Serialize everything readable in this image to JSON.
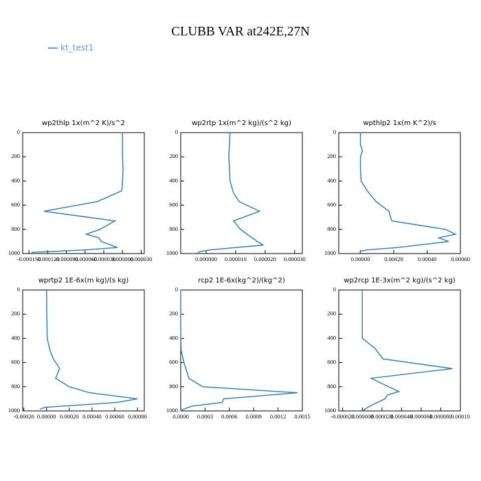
{
  "title": "CLUBB VAR at242E,27N",
  "chart_data": [
    {
      "type": "line",
      "title": "wp2thlp  1x(m^2 K)/s^2",
      "levels": [
        0,
        100,
        150,
        200,
        300,
        400,
        480,
        570,
        650,
        730,
        800,
        840,
        870,
        900,
        950,
        970,
        990,
        1000
      ],
      "series": [
        {
          "name": "kt_test1",
          "color": "#2a78b4",
          "values": [
            0,
            0,
            0,
            0,
            1e-06,
            0,
            -1e-06,
            -4e-05,
            -0.000126,
            -1.2e-05,
            -3.6e-05,
            -5.8e-05,
            -3.8e-05,
            -3.4e-05,
            -8e-06,
            -6e-05,
            -0.000145,
            -0.000145
          ]
        }
      ],
      "xlim": [
        -0.00016,
        3.5e-05
      ],
      "xticks": [
        {
          "value": -0.00015,
          "label": "-0.000150"
        },
        {
          "value": -0.00012,
          "label": "-0.000120"
        },
        {
          "value": -9e-05,
          "label": "-0.000090"
        },
        {
          "value": -6e-05,
          "label": "-0.000060"
        },
        {
          "value": -3e-05,
          "label": "-0.000030"
        },
        {
          "value": 0,
          "label": "0.000000"
        },
        {
          "value": 3e-05,
          "label": "0.000030"
        }
      ],
      "ylim": [
        1000,
        0
      ],
      "yticks": [
        0,
        200,
        400,
        600,
        800,
        1000
      ]
    },
    {
      "type": "line",
      "title": "wp2rtp  1x(m^2 kg)/(s^2 kg)",
      "levels": [
        0,
        200,
        400,
        500,
        570,
        650,
        730,
        800,
        870,
        900,
        930,
        970,
        985,
        1000
      ],
      "series": [
        {
          "name": "kt_test1",
          "color": "#2a78b4",
          "values": [
            8.1e-06,
            7.7e-06,
            8.1e-06,
            9.3e-06,
            1.12e-05,
            1.81e-05,
            9.3e-06,
            1.16e-05,
            1.56e-05,
            1.74e-05,
            1.93e-05,
            1.2e-06,
            -2.3e-06,
            -3e-06
          ]
        }
      ],
      "xlim": [
        -8.6e-06,
        3.26e-05
      ],
      "xticks": [
        {
          "value": 0,
          "label": "0.000000"
        },
        {
          "value": 1e-05,
          "label": "0.000010"
        },
        {
          "value": 2e-05,
          "label": "0.000020"
        },
        {
          "value": 3e-05,
          "label": "0.000030"
        }
      ],
      "ylim": [
        1000,
        0
      ],
      "yticks": [
        0,
        200,
        400,
        600,
        800,
        1000
      ]
    },
    {
      "type": "line",
      "title": "wpthlp2  1x(m K^2)/s",
      "levels": [
        0,
        100,
        150,
        200,
        300,
        400,
        480,
        570,
        650,
        730,
        800,
        840,
        870,
        900,
        950,
        970,
        980,
        1000
      ],
      "series": [
        {
          "name": "kt_test1",
          "color": "#2a78b4",
          "values": [
            0,
            0,
            1.2e-05,
            0,
            0,
            4e-06,
            4e-05,
            9.4e-05,
            0.000171,
            0.000188,
            0.00051,
            0.000571,
            0.00047,
            0.00053,
            0.000224,
            4e-05,
            0,
            -4e-06
          ]
        }
      ],
      "xlim": [
        -0.00013,
        0.0006
      ],
      "xticks": [
        {
          "value": 0,
          "label": "0.00000"
        },
        {
          "value": 0.0002,
          "label": "0.00020"
        },
        {
          "value": 0.0004,
          "label": "0.00040"
        },
        {
          "value": 0.0006,
          "label": "0.00060"
        }
      ],
      "ylim": [
        1000,
        0
      ],
      "yticks": [
        0,
        200,
        400,
        600,
        800,
        1000
      ]
    },
    {
      "type": "line",
      "title": "wprtp2  1E-6x(m kg)/(s kg)",
      "levels": [
        0,
        200,
        400,
        500,
        570,
        650,
        730,
        800,
        850,
        900,
        930,
        970,
        985
      ],
      "series": [
        {
          "name": "kt_test1",
          "color": "#2a78b4",
          "values": [
            0,
            2e-06,
            6e-06,
            3e-05,
            6e-05,
            0.000115,
            8e-05,
            0.0002,
            0.00038,
            0.0008,
            0.00062,
            -1.2e-05,
            -6e-05
          ]
        }
      ],
      "xlim": [
        -0.00021,
        0.00086
      ],
      "xticks": [
        {
          "value": -0.0002,
          "label": "-0.00020"
        },
        {
          "value": 0,
          "label": "0.00000"
        },
        {
          "value": 0.0002,
          "label": "0.00020"
        },
        {
          "value": 0.0004,
          "label": "0.00040"
        },
        {
          "value": 0.0006,
          "label": "0.00060"
        },
        {
          "value": 0.0008,
          "label": "0.00080"
        }
      ],
      "ylim": [
        1000,
        0
      ],
      "yticks": [
        0,
        200,
        400,
        600,
        800,
        1000
      ]
    },
    {
      "type": "line",
      "title": "rcp2  1E-6x(kg^2)/(kg^2)",
      "levels": [
        0,
        300,
        500,
        600,
        730,
        800,
        850,
        900,
        930,
        960,
        990,
        1000
      ],
      "series": [
        {
          "name": "kt_test1",
          "color": "#2a78b4",
          "values": [
            0,
            0,
            5e-06,
            4e-05,
            0.0001,
            0.00027,
            0.00144,
            0.00053,
            0.00051,
            0.00014,
            2e-05,
            0
          ]
        }
      ],
      "xlim": [
        0,
        0.0015
      ],
      "xticks": [
        {
          "value": 0,
          "label": "0.0000"
        },
        {
          "value": 0.0003,
          "label": "0.0003"
        },
        {
          "value": 0.0006,
          "label": "0.0006"
        },
        {
          "value": 0.0009,
          "label": "0.0009"
        },
        {
          "value": 0.0012,
          "label": "0.0012"
        },
        {
          "value": 0.0015,
          "label": "0.0015"
        }
      ],
      "ylim": [
        1000,
        0
      ],
      "yticks": [
        0,
        200,
        400,
        600,
        800,
        1000
      ]
    },
    {
      "type": "line",
      "title": "wp2rcp  1E-3x(m^2 kg)/(s^2 kg)",
      "levels": [
        0,
        200,
        400,
        480,
        570,
        650,
        730,
        800,
        840,
        870,
        900,
        940,
        970,
        1000
      ],
      "series": [
        {
          "name": "kt_test1",
          "color": "#2a78b4",
          "values": [
            0,
            0,
            0,
            1.26e-05,
            2.1e-05,
            9.2e-05,
            9.1e-06,
            2.67e-05,
            3.72e-05,
            2.53e-05,
            2.32e-05,
            1.26e-05,
            5.6e-06,
            0
          ]
        }
      ],
      "xlim": [
        -2.4e-05,
        0.0001
      ],
      "xticks": [
        {
          "value": -2e-05,
          "label": "-0.000020"
        },
        {
          "value": 0,
          "label": "0.000000"
        },
        {
          "value": 2e-05,
          "label": "0.000020"
        },
        {
          "value": 4e-05,
          "label": "0.000040"
        },
        {
          "value": 6e-05,
          "label": "0.000060"
        },
        {
          "value": 8e-05,
          "label": "0.000080"
        },
        {
          "value": 0.0001,
          "label": "0.00010"
        }
      ],
      "ylim": [
        1000,
        0
      ],
      "yticks": [
        0,
        200,
        400,
        600,
        800,
        1000
      ]
    }
  ]
}
